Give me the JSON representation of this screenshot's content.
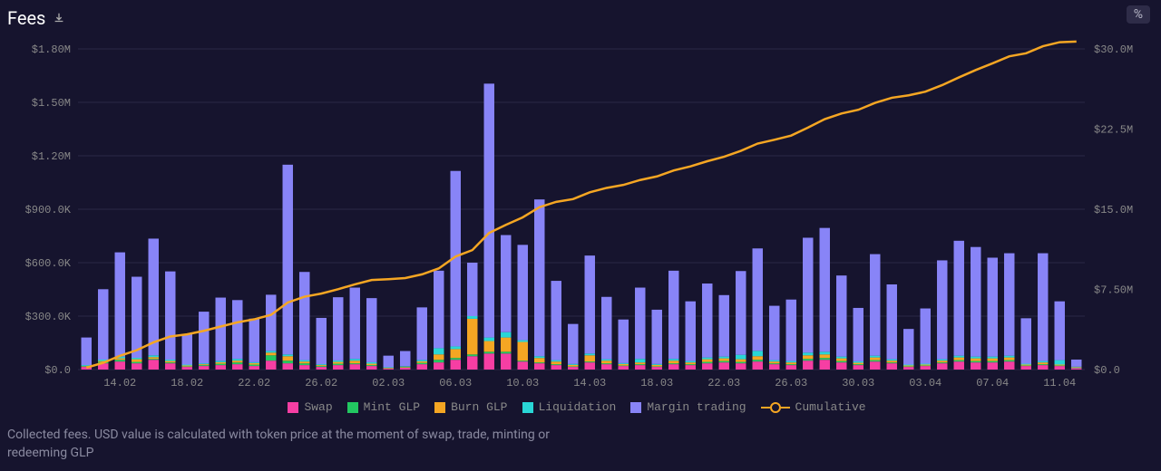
{
  "title": "Fees",
  "percent_button": "%",
  "footer": "Collected fees. USD value is calculated with token price at the moment of swap, trade, minting or redeeming GLP",
  "colors": {
    "background": "#16142e",
    "grid": "#2a2845",
    "axis_text": "#888888",
    "title_text": "#ffffff"
  },
  "chart": {
    "type": "stacked-bar-with-line",
    "left_axis": {
      "label_prefix": "$",
      "ticks": [
        0,
        300000,
        600000,
        900000,
        1200000,
        1500000,
        1800000
      ],
      "tick_labels": [
        "$0.0",
        "$300.0K",
        "$600.0K",
        "$900.0K",
        "$1.20M",
        "$1.50M",
        "$1.80M"
      ],
      "max": 1800000
    },
    "right_axis": {
      "ticks": [
        0,
        7500000,
        15000000,
        22500000,
        30000000
      ],
      "tick_labels": [
        "$0.0",
        "$7.50M",
        "$15.0M",
        "$22.5M",
        "$30.0M"
      ],
      "max": 30000000
    },
    "x_labels": [
      "14.02",
      "18.02",
      "22.02",
      "26.02",
      "02.03",
      "06.03",
      "10.03",
      "14.03",
      "18.03",
      "22.03",
      "26.03",
      "30.03",
      "03.04",
      "07.04",
      "11.04"
    ],
    "series": [
      {
        "key": "swap",
        "label": "Swap",
        "color": "#f63ea3"
      },
      {
        "key": "mint",
        "label": "Mint GLP",
        "color": "#22c761"
      },
      {
        "key": "burn",
        "label": "Burn GLP",
        "color": "#f5a623"
      },
      {
        "key": "liq",
        "label": "Liquidation",
        "color": "#29d6d6"
      },
      {
        "key": "margin",
        "label": "Margin trading",
        "color": "#8884f7"
      }
    ],
    "line": {
      "key": "cum",
      "label": "Cumulative",
      "color": "#f5a623"
    },
    "bars": [
      {
        "swap": 15000,
        "mint": 3000,
        "burn": 2000,
        "liq": 5000,
        "margin": 155000
      },
      {
        "swap": 35000,
        "mint": 8000,
        "burn": 5000,
        "liq": 8000,
        "margin": 395000
      },
      {
        "swap": 45000,
        "mint": 10000,
        "burn": 8000,
        "liq": 10000,
        "margin": 585000
      },
      {
        "swap": 35000,
        "mint": 8000,
        "burn": 15000,
        "liq": 8000,
        "margin": 455000
      },
      {
        "swap": 55000,
        "mint": 5000,
        "burn": 10000,
        "liq": 10000,
        "margin": 655000
      },
      {
        "swap": 35000,
        "mint": 5000,
        "burn": 8000,
        "liq": 8000,
        "margin": 495000
      },
      {
        "swap": 15000,
        "mint": 3000,
        "burn": 5000,
        "liq": 5000,
        "margin": 172000
      },
      {
        "swap": 20000,
        "mint": 5000,
        "burn": 5000,
        "liq": 5000,
        "margin": 290000
      },
      {
        "swap": 25000,
        "mint": 8000,
        "burn": 8000,
        "liq": 8000,
        "margin": 355000
      },
      {
        "swap": 30000,
        "mint": 10000,
        "burn": 10000,
        "liq": 10000,
        "margin": 330000
      },
      {
        "swap": 20000,
        "mint": 8000,
        "burn": 8000,
        "liq": 5000,
        "margin": 245000
      },
      {
        "swap": 50000,
        "mint": 30000,
        "burn": 15000,
        "liq": 10000,
        "margin": 315000
      },
      {
        "swap": 35000,
        "mint": 15000,
        "burn": 25000,
        "liq": 10000,
        "margin": 1065000
      },
      {
        "swap": 25000,
        "mint": 10000,
        "burn": 10000,
        "liq": 8000,
        "margin": 495000
      },
      {
        "swap": 15000,
        "mint": 5000,
        "burn": 5000,
        "liq": 5000,
        "margin": 260000
      },
      {
        "swap": 25000,
        "mint": 8000,
        "burn": 10000,
        "liq": 8000,
        "margin": 355000
      },
      {
        "swap": 30000,
        "mint": 5000,
        "burn": 15000,
        "liq": 10000,
        "margin": 400000
      },
      {
        "swap": 20000,
        "mint": 5000,
        "burn": 8000,
        "liq": 8000,
        "margin": 360000
      },
      {
        "swap": 5000,
        "mint": 2000,
        "burn": 3000,
        "liq": 3000,
        "margin": 65000
      },
      {
        "swap": 10000,
        "mint": 3000,
        "burn": 3000,
        "liq": 3000,
        "margin": 85000
      },
      {
        "swap": 30000,
        "mint": 8000,
        "burn": 8000,
        "liq": 8000,
        "margin": 295000
      },
      {
        "swap": 40000,
        "mint": 15000,
        "burn": 30000,
        "liq": 35000,
        "margin": 435000
      },
      {
        "swap": 55000,
        "mint": 10000,
        "burn": 50000,
        "liq": 15000,
        "margin": 985000
      },
      {
        "swap": 75000,
        "mint": 10000,
        "burn": 200000,
        "liq": 15000,
        "margin": 300000
      },
      {
        "swap": 90000,
        "mint": 10000,
        "burn": 60000,
        "liq": 20000,
        "margin": 1425000
      },
      {
        "swap": 90000,
        "mint": 10000,
        "burn": 80000,
        "liq": 30000,
        "margin": 545000
      },
      {
        "swap": 45000,
        "mint": 5000,
        "burn": 105000,
        "liq": 10000,
        "margin": 535000
      },
      {
        "swap": 35000,
        "mint": 5000,
        "burn": 25000,
        "liq": 10000,
        "margin": 880000
      },
      {
        "swap": 25000,
        "mint": 5000,
        "burn": 15000,
        "liq": 8000,
        "margin": 445000
      },
      {
        "swap": 15000,
        "mint": 3000,
        "burn": 8000,
        "liq": 5000,
        "margin": 225000
      },
      {
        "swap": 40000,
        "mint": 5000,
        "burn": 35000,
        "liq": 10000,
        "margin": 550000
      },
      {
        "swap": 30000,
        "mint": 5000,
        "burn": 15000,
        "liq": 8000,
        "margin": 350000
      },
      {
        "swap": 20000,
        "mint": 3000,
        "burn": 8000,
        "liq": 5000,
        "margin": 245000
      },
      {
        "swap": 25000,
        "mint": 5000,
        "burn": 10000,
        "liq": 20000,
        "margin": 400000
      },
      {
        "swap": 15000,
        "mint": 3000,
        "burn": 8000,
        "liq": 5000,
        "margin": 305000
      },
      {
        "swap": 30000,
        "mint": 5000,
        "burn": 15000,
        "liq": 10000,
        "margin": 495000
      },
      {
        "swap": 25000,
        "mint": 5000,
        "burn": 10000,
        "liq": 8000,
        "margin": 335000
      },
      {
        "swap": 35000,
        "mint": 8000,
        "burn": 15000,
        "liq": 10000,
        "margin": 415000
      },
      {
        "swap": 40000,
        "mint": 8000,
        "burn": 15000,
        "liq": 10000,
        "margin": 345000
      },
      {
        "swap": 35000,
        "mint": 8000,
        "burn": 15000,
        "liq": 25000,
        "margin": 470000
      },
      {
        "swap": 45000,
        "mint": 10000,
        "burn": 20000,
        "liq": 30000,
        "margin": 575000
      },
      {
        "swap": 30000,
        "mint": 5000,
        "burn": 10000,
        "liq": 8000,
        "margin": 305000
      },
      {
        "swap": 25000,
        "mint": 5000,
        "burn": 10000,
        "liq": 8000,
        "margin": 345000
      },
      {
        "swap": 50000,
        "mint": 10000,
        "burn": 20000,
        "liq": 15000,
        "margin": 645000
      },
      {
        "swap": 55000,
        "mint": 10000,
        "burn": 20000,
        "liq": 15000,
        "margin": 695000
      },
      {
        "swap": 40000,
        "mint": 8000,
        "burn": 15000,
        "liq": 10000,
        "margin": 455000
      },
      {
        "swap": 25000,
        "mint": 5000,
        "burn": 8000,
        "liq": 8000,
        "margin": 300000
      },
      {
        "swap": 45000,
        "mint": 8000,
        "burn": 15000,
        "liq": 10000,
        "margin": 570000
      },
      {
        "swap": 35000,
        "mint": 5000,
        "burn": 10000,
        "liq": 8000,
        "margin": 420000
      },
      {
        "swap": 15000,
        "mint": 3000,
        "burn": 5000,
        "liq": 5000,
        "margin": 200000
      },
      {
        "swap": 20000,
        "mint": 3000,
        "burn": 5000,
        "liq": 5000,
        "margin": 310000
      },
      {
        "swap": 35000,
        "mint": 5000,
        "burn": 10000,
        "liq": 8000,
        "margin": 555000
      },
      {
        "swap": 45000,
        "mint": 8000,
        "burn": 15000,
        "liq": 10000,
        "margin": 645000
      },
      {
        "swap": 40000,
        "mint": 8000,
        "burn": 15000,
        "liq": 10000,
        "margin": 615000
      },
      {
        "swap": 40000,
        "mint": 8000,
        "burn": 15000,
        "liq": 10000,
        "margin": 555000
      },
      {
        "swap": 45000,
        "mint": 8000,
        "burn": 15000,
        "liq": 10000,
        "margin": 575000
      },
      {
        "swap": 20000,
        "mint": 3000,
        "burn": 5000,
        "liq": 5000,
        "margin": 255000
      },
      {
        "swap": 25000,
        "mint": 5000,
        "burn": 10000,
        "liq": 8000,
        "margin": 605000
      },
      {
        "swap": 20000,
        "mint": 3000,
        "burn": 5000,
        "liq": 25000,
        "margin": 330000
      },
      {
        "swap": 8000,
        "mint": 2000,
        "burn": 3000,
        "liq": 3000,
        "margin": 40000
      }
    ]
  }
}
